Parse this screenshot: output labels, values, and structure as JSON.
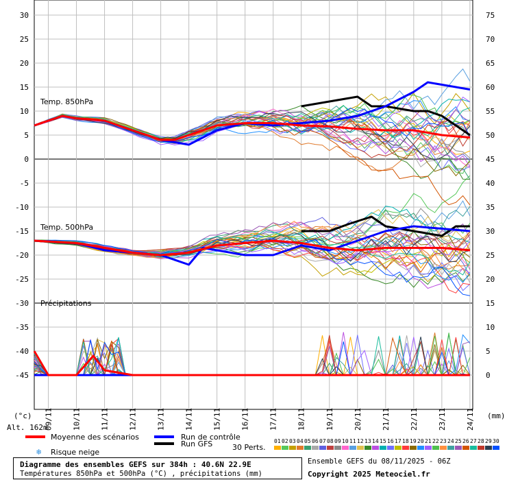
{
  "chart_data": {
    "type": "line",
    "left_axis_ticks": [
      "30",
      "25",
      "20",
      "15",
      "10",
      "5",
      "0",
      "-5",
      "-10",
      "-15",
      "-20",
      "-25",
      "-30",
      "-35",
      "-40",
      "-45"
    ],
    "right_axis_ticks": [
      "75",
      "70",
      "65",
      "60",
      "55",
      "50",
      "45",
      "40",
      "35",
      "30",
      "25",
      "20",
      "15",
      "10",
      "5",
      "0"
    ],
    "x_ticks": [
      "09/11",
      "10/11",
      "11/11",
      "12/11",
      "13/11",
      "14/11",
      "15/11",
      "16/11",
      "17/11",
      "18/11",
      "19/11",
      "20/11",
      "21/11",
      "22/11",
      "23/11",
      "24/11"
    ],
    "left_unit": "(°c)",
    "right_unit": "(mm)",
    "altitude": "Alt. 162m",
    "panels": {
      "t850": {
        "label": "Temp. 850hPa"
      },
      "t500": {
        "label": "Temp. 500hPa"
      },
      "precip": {
        "label": "Précipitations"
      }
    },
    "series": [
      {
        "name": "Moyenne des scénarios",
        "color": "#ff0000",
        "t850": [
          [
            8.5,
            7
          ],
          [
            9.5,
            9
          ],
          [
            10,
            8.5
          ],
          [
            11,
            8
          ],
          [
            12,
            6
          ],
          [
            13,
            4
          ],
          [
            13.5,
            4
          ],
          [
            14,
            5
          ],
          [
            15,
            7
          ],
          [
            16,
            7.5
          ],
          [
            17,
            7.5
          ],
          [
            18,
            7
          ],
          [
            19,
            6.8
          ],
          [
            20,
            6.3
          ],
          [
            21,
            6
          ],
          [
            22,
            6
          ],
          [
            23,
            5
          ],
          [
            24,
            4.5
          ]
        ],
        "t500": [
          [
            8.5,
            -17
          ],
          [
            10,
            -17.5
          ],
          [
            11,
            -18.5
          ],
          [
            12,
            -19.5
          ],
          [
            13,
            -20
          ],
          [
            14,
            -19.5
          ],
          [
            15,
            -18
          ],
          [
            16,
            -17.5
          ],
          [
            17,
            -17
          ],
          [
            18,
            -17.5
          ],
          [
            19,
            -18.5
          ],
          [
            20,
            -19
          ],
          [
            21,
            -18.5
          ],
          [
            22,
            -18.5
          ],
          [
            23,
            -18.5
          ],
          [
            24,
            -19
          ]
        ],
        "precip": [
          [
            8.5,
            5
          ],
          [
            9,
            0
          ],
          [
            10,
            0
          ],
          [
            10.6,
            4
          ],
          [
            11,
            1
          ],
          [
            12,
            0
          ],
          [
            24,
            0
          ]
        ]
      },
      {
        "name": "Run de contrôle",
        "color": "#0000ff",
        "t850": [
          [
            8.5,
            7
          ],
          [
            9.5,
            9
          ],
          [
            10,
            8.5
          ],
          [
            11,
            8
          ],
          [
            12,
            6
          ],
          [
            13,
            4
          ],
          [
            14,
            3
          ],
          [
            15,
            6
          ],
          [
            16,
            7.5
          ],
          [
            17,
            7
          ],
          [
            18,
            7.5
          ],
          [
            19,
            8
          ],
          [
            20,
            9
          ],
          [
            21,
            11
          ],
          [
            22,
            14
          ],
          [
            22.5,
            16
          ],
          [
            23,
            15.5
          ],
          [
            24,
            14.5
          ]
        ],
        "t500": [
          [
            8.5,
            -17
          ],
          [
            10,
            -17.5
          ],
          [
            11,
            -19
          ],
          [
            12,
            -19.5
          ],
          [
            13,
            -20
          ],
          [
            14,
            -22
          ],
          [
            14.5,
            -18.5
          ],
          [
            15,
            -19
          ],
          [
            16,
            -20
          ],
          [
            17,
            -20
          ],
          [
            18,
            -18
          ],
          [
            19,
            -19
          ],
          [
            20,
            -17
          ],
          [
            21,
            -15
          ],
          [
            22,
            -14
          ],
          [
            23,
            -14.5
          ],
          [
            24,
            -15
          ]
        ],
        "precip": [
          [
            8.5,
            0
          ],
          [
            24,
            0
          ]
        ]
      },
      {
        "name": "Run GFS",
        "color": "#000000",
        "t850": [
          [
            18,
            11
          ],
          [
            19,
            12
          ],
          [
            20,
            13
          ],
          [
            20.5,
            11
          ],
          [
            21,
            11
          ],
          [
            22,
            10
          ],
          [
            22.5,
            10
          ],
          [
            23,
            9
          ],
          [
            24,
            5
          ]
        ],
        "t500": [
          [
            18,
            -15
          ],
          [
            19,
            -15
          ],
          [
            19.7,
            -13.5
          ],
          [
            20.5,
            -12
          ],
          [
            21,
            -14
          ],
          [
            22,
            -15
          ],
          [
            23,
            -16
          ],
          [
            23.5,
            -14
          ],
          [
            24,
            -14
          ]
        ],
        "precip": [
          [
            8.5,
            0
          ],
          [
            24,
            0
          ]
        ]
      }
    ],
    "perturbation_colors": [
      "#ffb000",
      "#56c85a",
      "#c4a000",
      "#e07a2d",
      "#3aa070",
      "#a9a9a9",
      "#6060e0",
      "#c04040",
      "#8a8a8a",
      "#ff66cc",
      "#5aa0e0",
      "#e0c050",
      "#3a8a2a",
      "#bb4fe0",
      "#00b0b0",
      "#7070ff",
      "#c0c000",
      "#ff3a3a",
      "#8a6a00",
      "#2090ff",
      "#a060ff",
      "#4fc04f",
      "#ff9040",
      "#40a0a0",
      "#9b59b6",
      "#d35400",
      "#1abc9c",
      "#c0392b",
      "#2c3e50",
      "#0050ff"
    ],
    "perturbation_labels": [
      "01",
      "02",
      "03",
      "04",
      "05",
      "06",
      "07",
      "08",
      "09",
      "10",
      "11",
      "12",
      "13",
      "14",
      "15",
      "16",
      "17",
      "18",
      "19",
      "20",
      "21",
      "22",
      "23",
      "24",
      "25",
      "26",
      "27",
      "28",
      "29",
      "30"
    ]
  },
  "legend": {
    "mean": "Moyenne des scénarios",
    "control": "Run de contrôle",
    "gfs": "Run GFS",
    "snow": "Risque neige",
    "perts": "30 Perts."
  },
  "footer": {
    "title": "Diagramme des ensembles GEFS sur 384h : 40.6N 22.9E",
    "subtitle": "Températures 850hPa et 500hPa (°C) , précipitations (mm)",
    "ensemble": "Ensemble GEFS du 08/11/2025 - 06Z",
    "copyright": "Copyright 2025 Meteociel.fr"
  }
}
